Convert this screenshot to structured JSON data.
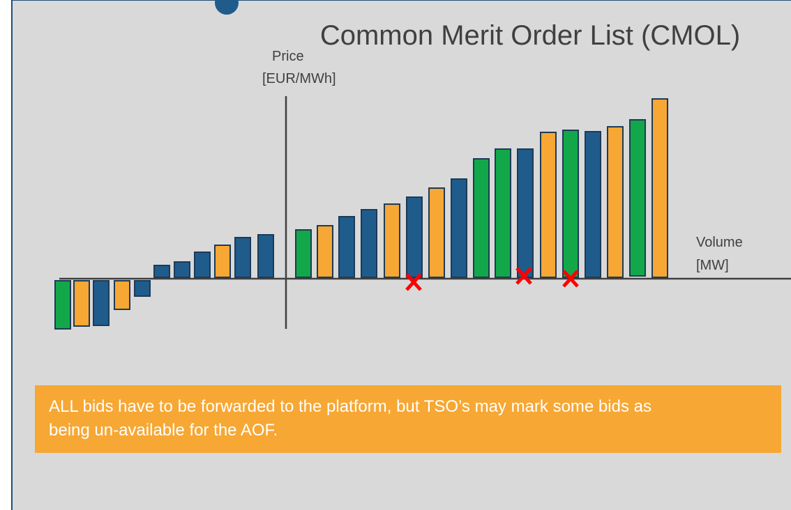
{
  "title": "Common Merit Order List (CMOL)",
  "y_axis": {
    "line1": "Price",
    "line2": "[EUR/MWh]"
  },
  "x_axis": {
    "line1": "Volume",
    "line2": "[MW]"
  },
  "note": "ALL bids have to be forwarded to the platform, but TSO’s may mark some bids as being un-available for the AOF."
}
